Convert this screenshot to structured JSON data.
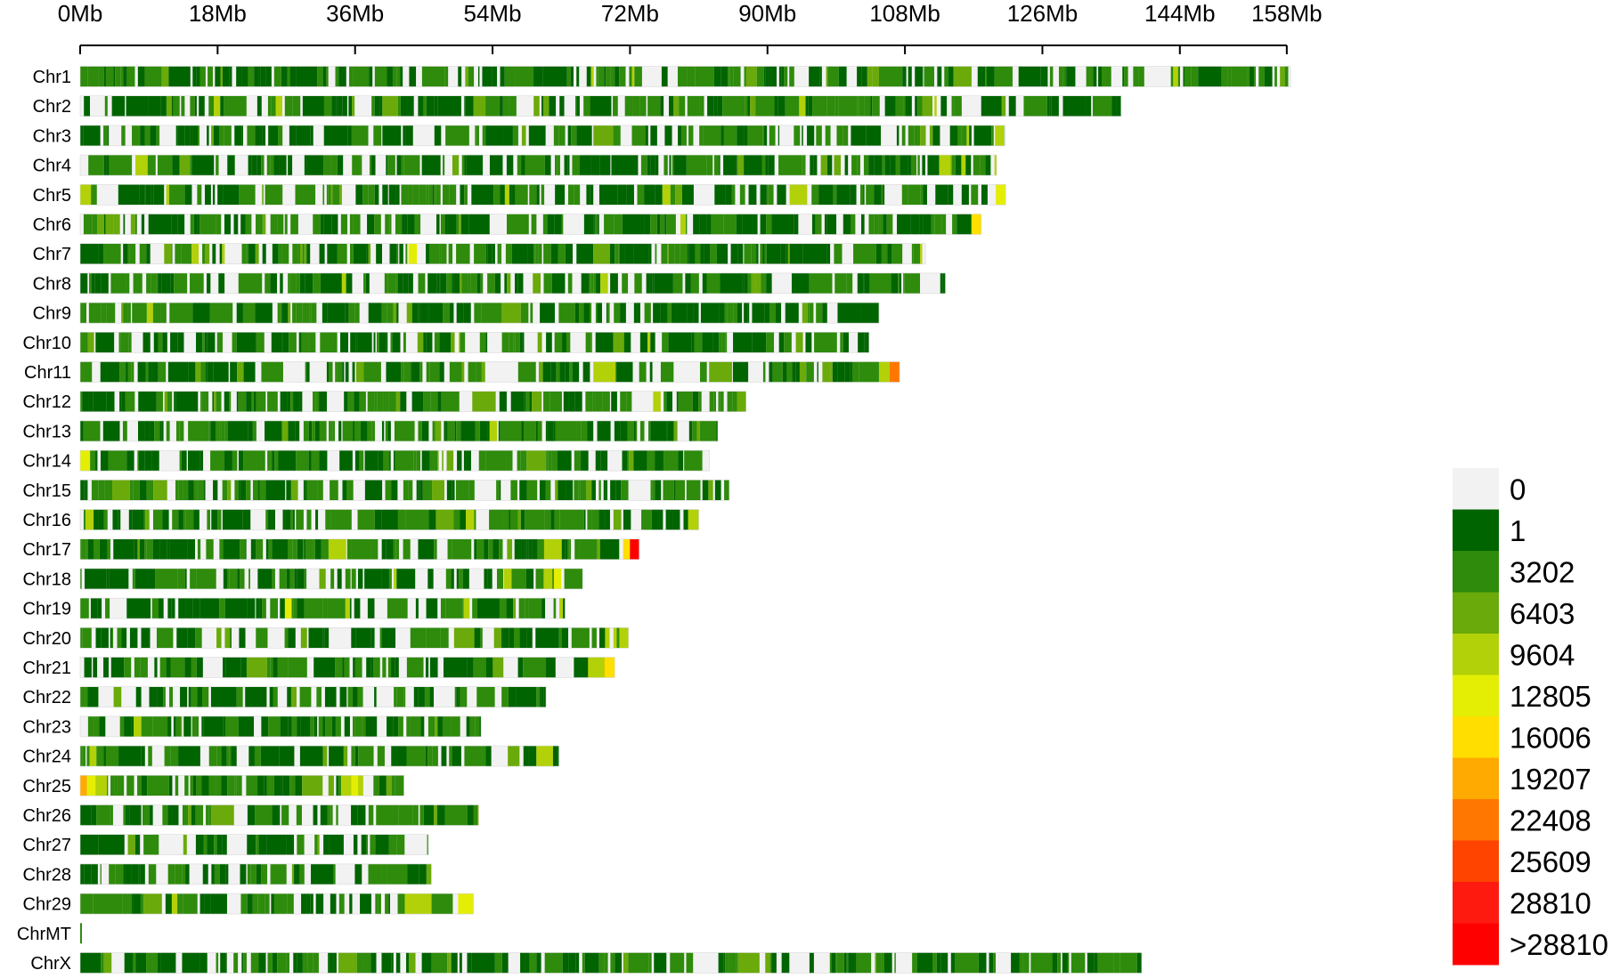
{
  "chart_data": {
    "type": "heatmap",
    "title": "",
    "x_unit": "Mb",
    "xlim": [
      0,
      158
    ],
    "x_ticks": [
      {
        "value": 0,
        "label": "0Mb"
      },
      {
        "value": 18,
        "label": "18Mb"
      },
      {
        "value": 36,
        "label": "36Mb"
      },
      {
        "value": 54,
        "label": "54Mb"
      },
      {
        "value": 72,
        "label": "72Mb"
      },
      {
        "value": 90,
        "label": "90Mb"
      },
      {
        "value": 108,
        "label": "108Mb"
      },
      {
        "value": 126,
        "label": "126Mb"
      },
      {
        "value": 144,
        "label": "144Mb"
      },
      {
        "value": 158,
        "label": "158Mb"
      }
    ],
    "chromosomes": [
      {
        "name": "Chr1",
        "length_mb": 158.5,
        "hotspots": []
      },
      {
        "name": "Chr2",
        "length_mb": 136.3,
        "hotspots": []
      },
      {
        "name": "Chr3",
        "length_mb": 121.0,
        "hotspots": [
          {
            "start": 119.8,
            "end": 121.0,
            "level": 4
          }
        ]
      },
      {
        "name": "Chr4",
        "length_mb": 120.0,
        "hotspots": [
          {
            "start": 112.5,
            "end": 114.0,
            "level": 4
          }
        ]
      },
      {
        "name": "Chr5",
        "length_mb": 121.2,
        "hotspots": [
          {
            "start": 55.6,
            "end": 56.2,
            "level": 4
          },
          {
            "start": 119.9,
            "end": 121.2,
            "level": 5
          }
        ]
      },
      {
        "name": "Chr6",
        "length_mb": 118.0,
        "hotspots": [
          {
            "start": 116.7,
            "end": 118.0,
            "level": 6
          }
        ]
      },
      {
        "name": "Chr7",
        "length_mb": 110.7,
        "hotspots": [
          {
            "start": 43.0,
            "end": 44.1,
            "level": 5
          },
          {
            "start": 11.0,
            "end": 12.0,
            "level": 3
          }
        ]
      },
      {
        "name": "Chr8",
        "length_mb": 113.3,
        "hotspots": []
      },
      {
        "name": "Chr9",
        "length_mb": 104.6,
        "hotspots": []
      },
      {
        "name": "Chr10",
        "length_mb": 103.3,
        "hotspots": []
      },
      {
        "name": "Chr11",
        "length_mb": 107.3,
        "hotspots": [
          {
            "start": 104.6,
            "end": 106.0,
            "level": 4
          },
          {
            "start": 106.0,
            "end": 107.3,
            "level": 8
          }
        ]
      },
      {
        "name": "Chr12",
        "length_mb": 87.2,
        "hotspots": [
          {
            "start": 86.0,
            "end": 87.2,
            "level": 3
          }
        ]
      },
      {
        "name": "Chr13",
        "length_mb": 83.5,
        "hotspots": [
          {
            "start": 53.6,
            "end": 54.6,
            "level": 4
          }
        ]
      },
      {
        "name": "Chr14",
        "length_mb": 82.4,
        "hotspots": [
          {
            "start": 0.0,
            "end": 1.3,
            "level": 5
          }
        ]
      },
      {
        "name": "Chr15",
        "length_mb": 85.0,
        "hotspots": []
      },
      {
        "name": "Chr16",
        "length_mb": 81.0,
        "hotspots": [
          {
            "start": 50.5,
            "end": 51.6,
            "level": 4
          },
          {
            "start": 79.6,
            "end": 81.0,
            "level": 4
          }
        ]
      },
      {
        "name": "Chr17",
        "length_mb": 73.2,
        "hotspots": [
          {
            "start": 71.1,
            "end": 72.0,
            "level": 6
          },
          {
            "start": 72.0,
            "end": 73.2,
            "level": 11
          }
        ]
      },
      {
        "name": "Chr18",
        "length_mb": 65.8,
        "hotspots": [
          {
            "start": 55.5,
            "end": 56.5,
            "level": 4
          },
          {
            "start": 62.0,
            "end": 63.0,
            "level": 5
          }
        ]
      },
      {
        "name": "Chr19",
        "length_mb": 63.5,
        "hotspots": [
          {
            "start": 26.8,
            "end": 27.7,
            "level": 5
          },
          {
            "start": 50.2,
            "end": 51.0,
            "level": 4
          }
        ]
      },
      {
        "name": "Chr20",
        "length_mb": 71.8,
        "hotspots": [
          {
            "start": 70.6,
            "end": 71.8,
            "level": 4
          }
        ]
      },
      {
        "name": "Chr21",
        "length_mb": 70.0,
        "hotspots": [
          {
            "start": 68.6,
            "end": 70.0,
            "level": 6
          },
          {
            "start": 66.5,
            "end": 68.6,
            "level": 4
          }
        ]
      },
      {
        "name": "Chr22",
        "length_mb": 61.0,
        "hotspots": []
      },
      {
        "name": "Chr23",
        "length_mb": 52.5,
        "hotspots": [
          {
            "start": 7.0,
            "end": 8.0,
            "level": 4
          }
        ]
      },
      {
        "name": "Chr24",
        "length_mb": 62.7,
        "hotspots": []
      },
      {
        "name": "Chr25",
        "length_mb": 42.4,
        "hotspots": [
          {
            "start": 0.0,
            "end": 0.9,
            "level": 7
          },
          {
            "start": 0.9,
            "end": 2.0,
            "level": 5
          },
          {
            "start": 2.0,
            "end": 3.5,
            "level": 4
          },
          {
            "start": 35.5,
            "end": 36.4,
            "level": 5
          }
        ]
      },
      {
        "name": "Chr26",
        "length_mb": 52.2,
        "hotspots": []
      },
      {
        "name": "Chr27",
        "length_mb": 45.6,
        "hotspots": []
      },
      {
        "name": "Chr28",
        "length_mb": 46.0,
        "hotspots": []
      },
      {
        "name": "Chr29",
        "length_mb": 51.5,
        "hotspots": [
          {
            "start": 49.5,
            "end": 51.5,
            "level": 5
          },
          {
            "start": 42.5,
            "end": 46.0,
            "level": 4
          }
        ]
      },
      {
        "name": "ChrMT",
        "length_mb": 0.1,
        "hotspots": []
      },
      {
        "name": "ChrX",
        "length_mb": 139.0,
        "hotspots": []
      }
    ],
    "legend": {
      "placement": "right",
      "bins": [
        {
          "label": "0",
          "color": "#f2f2f2"
        },
        {
          "label": "1",
          "color": "#006400"
        },
        {
          "label": "3202",
          "color": "#2e8b0b"
        },
        {
          "label": "6403",
          "color": "#6aaa0a"
        },
        {
          "label": "9604",
          "color": "#b2d108"
        },
        {
          "label": "12805",
          "color": "#e4ee05"
        },
        {
          "label": "16006",
          "color": "#ffde00"
        },
        {
          "label": "19207",
          "color": "#ffaa00"
        },
        {
          "label": "22408",
          "color": "#ff7700"
        },
        {
          "label": "25609",
          "color": "#ff4400"
        },
        {
          "label": "28810",
          "color": "#ff1a10"
        },
        {
          "label": ">28810",
          "color": "#ff0000"
        }
      ]
    }
  }
}
